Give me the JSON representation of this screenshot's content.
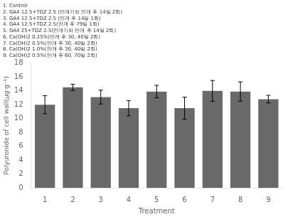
{
  "chart_data": {
    "type": "bar",
    "categories": [
      "1",
      "2",
      "3",
      "4",
      "5",
      "6",
      "7",
      "8",
      "9"
    ],
    "values": [
      12.0,
      14.5,
      13.1,
      11.5,
      13.9,
      11.5,
      14.0,
      13.9,
      12.8
    ],
    "errors": [
      1.3,
      0.45,
      1.0,
      1.1,
      0.9,
      1.6,
      1.5,
      1.4,
      0.55
    ],
    "color": "#696969",
    "xlabel": "Treatment",
    "ylabel": "Polyuronide of cell wall(μg·g⁻¹)",
    "ylim": [
      0,
      18
    ],
    "yticks": [
      0,
      2,
      4,
      6,
      8,
      10,
      12,
      14,
      16,
      18
    ],
    "grid": false,
    "annotations": [
      "1. Control",
      "2. GA4 12.5+TDZ 2.5 (만개기와 만개 후 14일 2회)",
      "3. GA4 12.5+TDZ 2.5 (만개 후 14일 1회)",
      "4. GA4 12.5+TDZ 2.5(만개 후 79일 1회)",
      "5. GA4 25+TDZ 2.5(만개기와 만개 후 14일 2회)",
      "6. Ca(OH)2 0.25%(만개 후 30, 40일 2회)",
      "7. Ca(OH)2 0.5%(만개 후 30, 40일 2회)",
      "8. Ca(OH)2 1.0%(만개 후 30, 40일 2회)",
      "9. Ca(OH)2 0.5%(만개 후 60, 70일 2회)"
    ]
  }
}
